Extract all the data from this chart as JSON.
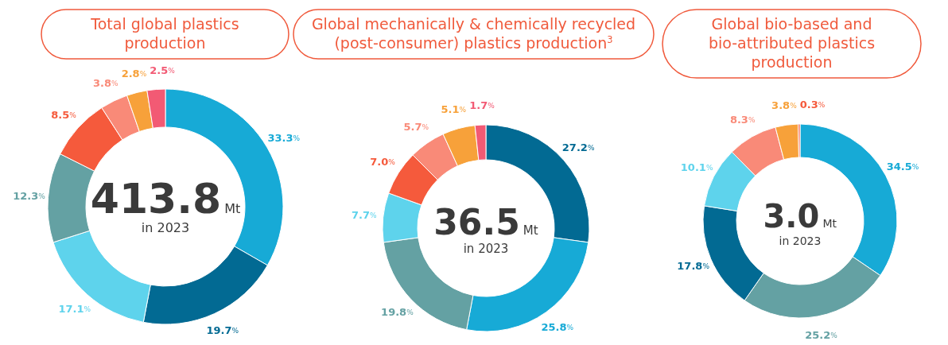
{
  "chart_data": [
    {
      "type": "donut",
      "title": "Total global plastics production",
      "categories": [
        null,
        null,
        null,
        null,
        null,
        null,
        null,
        null
      ],
      "values": [
        33.3,
        19.7,
        17.1,
        12.3,
        8.5,
        3.8,
        2.8,
        2.5
      ],
      "colors": [
        "#17aad6",
        "#026a93",
        "#5ed3ec",
        "#64a1a3",
        "#f55a3c",
        "#f98a78",
        "#f7a13a",
        "#f25a74"
      ],
      "value_labels": [
        "33.3%",
        "19.7%",
        "17.1%",
        "12.3%",
        "8.5%",
        "3.8%",
        "2.8%",
        "2.5%"
      ],
      "annotations": [
        "413.8",
        "Mt",
        "in 2023"
      ]
    },
    {
      "type": "donut",
      "title": "Global mechanically & chemically recycled (post-consumer) plastics production$^{3}$",
      "categories": [
        null,
        null,
        null,
        null,
        null,
        null,
        null,
        null
      ],
      "values": [
        27.2,
        25.8,
        19.8,
        7.7,
        7.0,
        5.7,
        5.1,
        1.7
      ],
      "colors": [
        "#026a93",
        "#17aad6",
        "#64a1a3",
        "#5ed3ec",
        "#f55a3c",
        "#f98a78",
        "#f7a13a",
        "#f25a74"
      ],
      "value_labels": [
        "27.2%",
        "25.8%",
        "19.8%",
        "7.7%",
        "7.0%",
        "5.7%",
        "5.1%",
        "1.7%"
      ],
      "annotations": [
        "36.5",
        "Mt",
        "in 2023"
      ]
    },
    {
      "type": "donut",
      "title": "Global bio-based and bio-attributed plastics production",
      "categories": [
        null,
        null,
        null,
        null,
        null,
        null,
        null
      ],
      "values": [
        34.5,
        25.2,
        17.8,
        10.1,
        8.3,
        3.8,
        0.3
      ],
      "colors": [
        "#17aad6",
        "#64a1a3",
        "#026a93",
        "#5ed3ec",
        "#f98a78",
        "#f7a13a",
        "#f55a3c"
      ],
      "value_labels": [
        "34.5%",
        "25.2%",
        "17.8%",
        "10.1%",
        "8.3%",
        "3.8%",
        "0.3%"
      ],
      "annotations": [
        "3.0",
        "Mt",
        "in 2023"
      ]
    }
  ]
}
